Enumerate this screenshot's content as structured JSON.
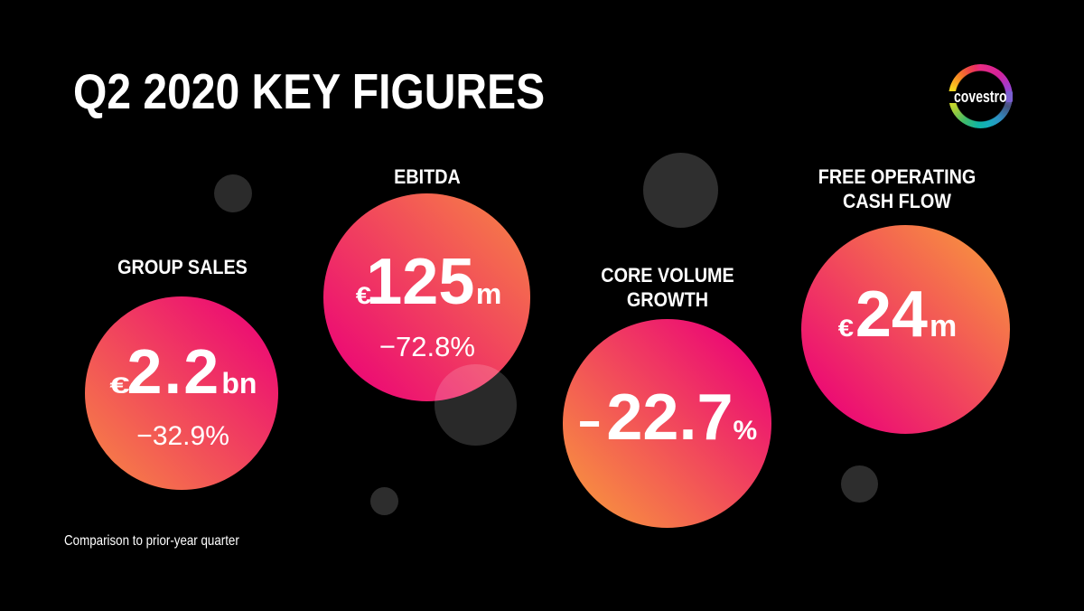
{
  "slide": {
    "title": "Q2 2020 KEY FIGURES",
    "footnote": "Comparison to prior-year quarter"
  },
  "logo": {
    "wordmark": "covestro"
  },
  "kpis": [
    {
      "id": "group-sales",
      "label_lines": [
        "GROUP SALES"
      ],
      "currency": "€",
      "value": "2.2",
      "unit": "bn",
      "change": "−32.9%"
    },
    {
      "id": "ebitda",
      "label_lines": [
        "EBITDA"
      ],
      "currency": "€",
      "value": "125",
      "unit": "m",
      "change": "−72.8%"
    },
    {
      "id": "core-volume-growth",
      "label_lines": [
        "CORE VOLUME",
        "GROWTH"
      ],
      "sign": "−",
      "value": "22.7",
      "unit": "%"
    },
    {
      "id": "free-operating-cash-flow",
      "label_lines": [
        "FREE OPERATING",
        "CASH FLOW"
      ],
      "currency": "€",
      "value": "24",
      "unit": "m"
    }
  ],
  "colors": {
    "background": "#000000",
    "text": "#ffffff",
    "gradient_orange": "#F78A42",
    "gradient_pink": "#EC0A74",
    "logo_block_violet": "#7a5fd0"
  },
  "chart_data": {
    "type": "table",
    "title": "Q2 2020 KEY FIGURES",
    "categories": [
      "GROUP SALES",
      "EBITDA",
      "CORE VOLUME GROWTH",
      "FREE OPERATING CASH FLOW"
    ],
    "series": [
      {
        "name": "value",
        "values": [
          "€2.2bn",
          "€125m",
          "−22.7%",
          "€24m"
        ]
      },
      {
        "name": "change vs prior-year quarter",
        "values": [
          "−32.9%",
          "−72.8%",
          null,
          null
        ]
      }
    ],
    "note": "Comparison to prior-year quarter"
  }
}
